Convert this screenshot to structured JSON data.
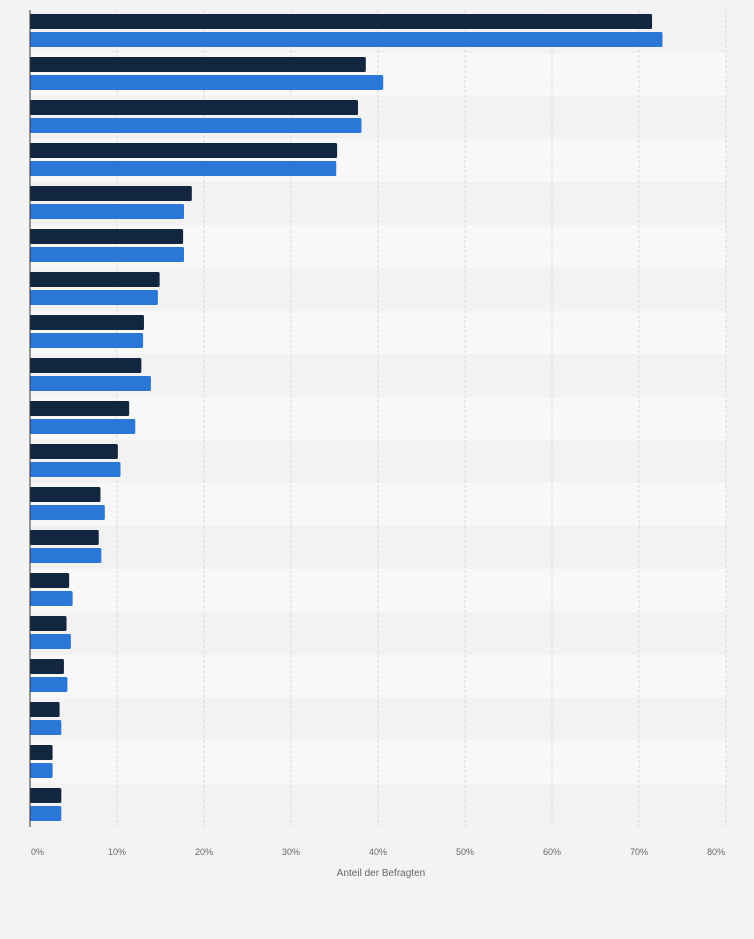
{
  "chart_data": {
    "type": "bar",
    "orientation": "horizontal",
    "categories": [
      "",
      "",
      "",
      "",
      "",
      "",
      "",
      "",
      "",
      "",
      "",
      "",
      "",
      "",
      "",
      "",
      "",
      "",
      ""
    ],
    "series": [
      {
        "color": "#13263f",
        "values": [
          71.5,
          38.6,
          37.7,
          35.3,
          18.6,
          17.6,
          14.9,
          13.1,
          12.8,
          11.4,
          10.1,
          8.1,
          7.9,
          4.5,
          4.2,
          3.9,
          3.4,
          2.6,
          3.6
        ]
      },
      {
        "color": "#2a77d8",
        "values": [
          72.7,
          40.6,
          38.1,
          35.2,
          17.7,
          17.7,
          14.7,
          13.0,
          13.9,
          12.1,
          10.4,
          8.6,
          8.2,
          4.9,
          4.7,
          4.3,
          3.6,
          2.6,
          3.6
        ]
      }
    ],
    "xlim": [
      0,
      80
    ],
    "xticks": [
      "0%",
      "10%",
      "20%",
      "30%",
      "40%",
      "50%",
      "60%",
      "70%",
      "80%"
    ],
    "xlabel": "Anteil der Befragten",
    "ylabel": "",
    "grid": true,
    "legend": "none"
  }
}
